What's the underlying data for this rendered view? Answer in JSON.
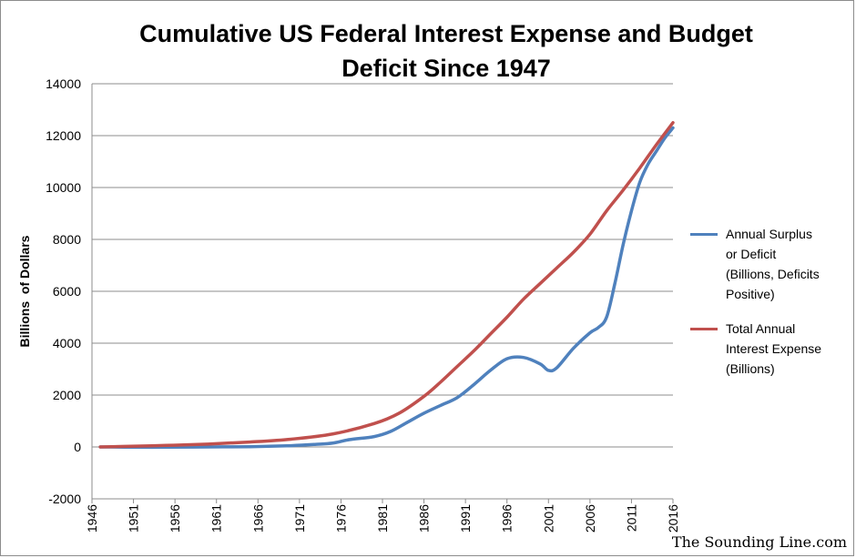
{
  "chart_data": {
    "type": "line",
    "title": "Cumulative US Federal Interest Expense and Budget Deficit Since 1947",
    "ylabel": "Billions  of Dollars",
    "xlabel": "",
    "ylim": [
      -2000,
      14000
    ],
    "xlim": [
      1946,
      2016
    ],
    "yticks": [
      -2000,
      0,
      2000,
      4000,
      6000,
      8000,
      10000,
      12000,
      14000
    ],
    "xticks": [
      1946,
      1951,
      1956,
      1961,
      1966,
      1971,
      1976,
      1981,
      1986,
      1991,
      1996,
      2001,
      2006,
      2011,
      2016
    ],
    "grid": "horizontal",
    "legend_position": "right",
    "series": [
      {
        "name": "Annual Surplus or Deficit (Billions, Deficits Positive)",
        "color": "#4f81bd",
        "points": [
          [
            1947,
            0
          ],
          [
            1950,
            -10
          ],
          [
            1955,
            -10
          ],
          [
            1960,
            0
          ],
          [
            1965,
            10
          ],
          [
            1970,
            50
          ],
          [
            1973,
            100
          ],
          [
            1975,
            150
          ],
          [
            1977,
            280
          ],
          [
            1980,
            400
          ],
          [
            1982,
            600
          ],
          [
            1984,
            950
          ],
          [
            1986,
            1300
          ],
          [
            1988,
            1600
          ],
          [
            1990,
            1900
          ],
          [
            1992,
            2400
          ],
          [
            1994,
            2950
          ],
          [
            1996,
            3400
          ],
          [
            1998,
            3450
          ],
          [
            2000,
            3200
          ],
          [
            2001,
            2950
          ],
          [
            2002,
            3050
          ],
          [
            2004,
            3800
          ],
          [
            2006,
            4400
          ],
          [
            2007,
            4600
          ],
          [
            2008,
            5000
          ],
          [
            2009,
            6300
          ],
          [
            2010,
            7800
          ],
          [
            2011,
            9100
          ],
          [
            2012,
            10200
          ],
          [
            2013,
            10900
          ],
          [
            2014,
            11400
          ],
          [
            2015,
            11900
          ],
          [
            2016,
            12300
          ]
        ]
      },
      {
        "name": "Total Annual Interest Expense (Billions)",
        "color": "#c0504d",
        "points": [
          [
            1947,
            0
          ],
          [
            1950,
            20
          ],
          [
            1955,
            60
          ],
          [
            1960,
            110
          ],
          [
            1965,
            190
          ],
          [
            1970,
            300
          ],
          [
            1975,
            500
          ],
          [
            1980,
            900
          ],
          [
            1983,
            1300
          ],
          [
            1986,
            1950
          ],
          [
            1988,
            2500
          ],
          [
            1990,
            3100
          ],
          [
            1992,
            3700
          ],
          [
            1994,
            4350
          ],
          [
            1996,
            5000
          ],
          [
            1998,
            5700
          ],
          [
            2000,
            6300
          ],
          [
            2002,
            6900
          ],
          [
            2004,
            7500
          ],
          [
            2006,
            8200
          ],
          [
            2008,
            9100
          ],
          [
            2010,
            9900
          ],
          [
            2012,
            10750
          ],
          [
            2014,
            11650
          ],
          [
            2016,
            12500
          ]
        ]
      }
    ],
    "legend": [
      {
        "lines": [
          "Annual Surplus",
          "or Deficit",
          "(Billions, Deficits",
          "Positive)"
        ],
        "color": "#4f81bd"
      },
      {
        "lines": [
          "Total Annual",
          "Interest Expense",
          "(Billions)"
        ],
        "color": "#c0504d"
      }
    ]
  },
  "title_lines": [
    "Cumulative US Federal Interest Expense and Budget",
    "Deficit Since 1947"
  ],
  "watermark": "The Sounding Line.com"
}
